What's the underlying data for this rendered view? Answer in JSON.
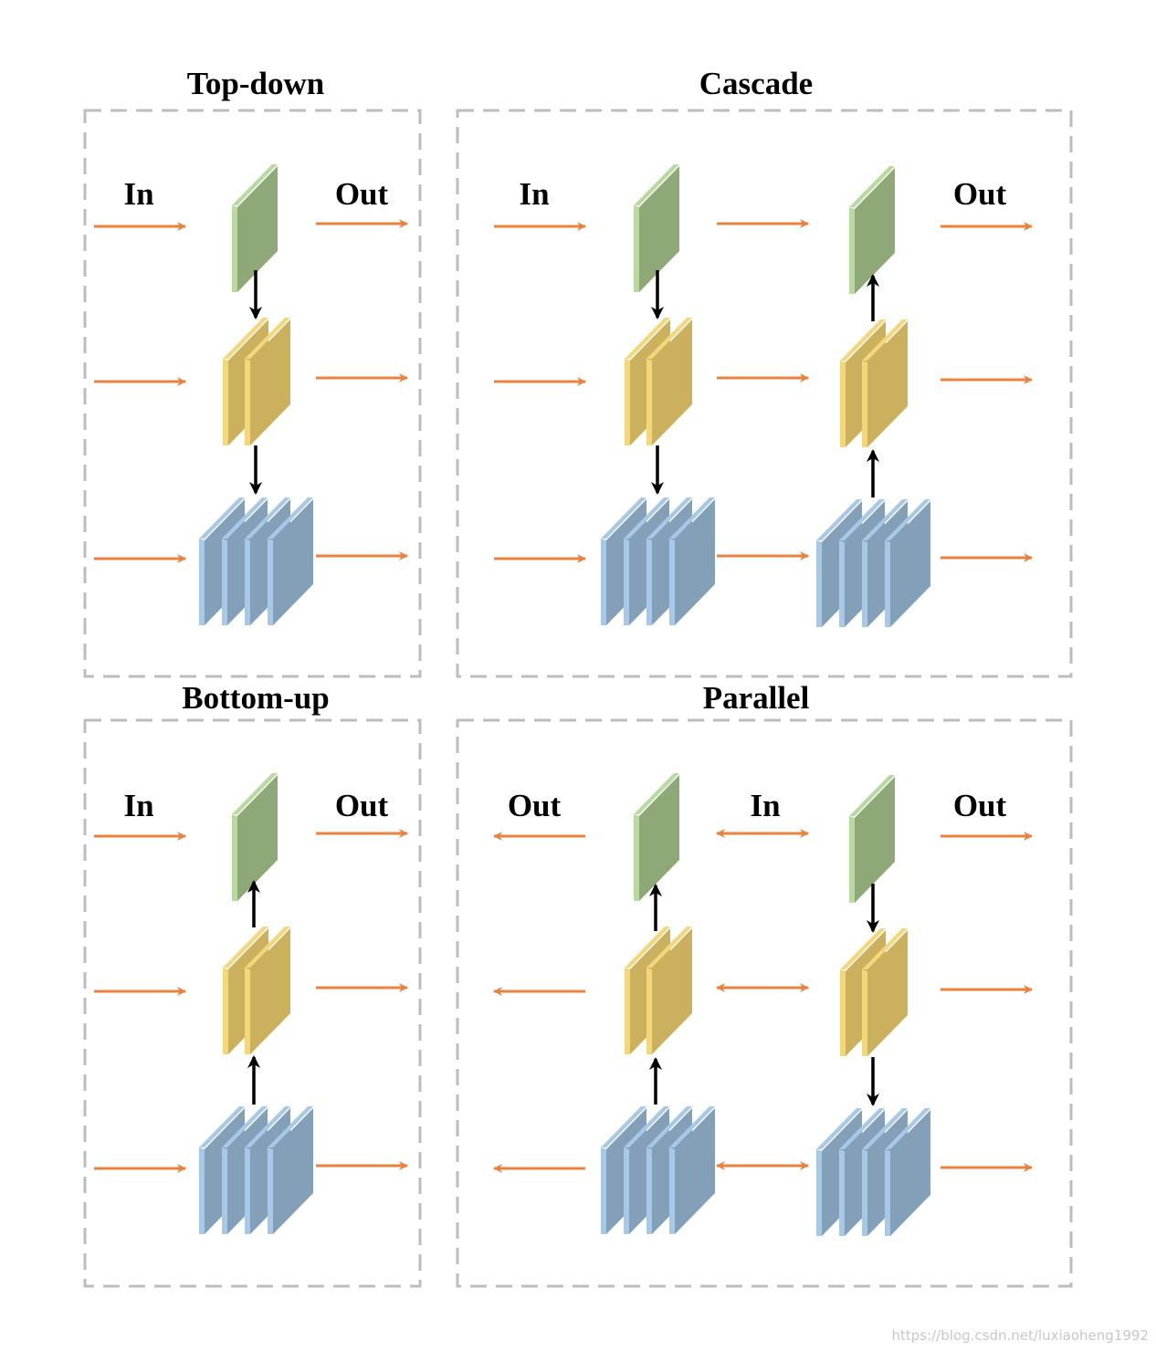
{
  "colors": {
    "flow_arrow": "#E8823E",
    "link_arrow": "#000000",
    "frame": "#BDBDBD",
    "green_face": "#8FA878",
    "green_edge": "#B8D9A0",
    "yellow_face": "#CBB05E",
    "yellow_edge": "#F4D77A",
    "blue_face": "#849FB8",
    "blue_edge": "#A8C8E8"
  },
  "panels": {
    "top_down": {
      "title": "Top-down",
      "in_label": "In",
      "out_label": "Out"
    },
    "cascade": {
      "title": "Cascade",
      "in_label": "In",
      "out_label": "Out"
    },
    "bottom_up": {
      "title": "Bottom-up",
      "in_label": "In",
      "out_label": "Out"
    },
    "parallel": {
      "title": "Parallel",
      "out_left_label": "Out",
      "in_label": "In",
      "out_right_label": "Out"
    }
  },
  "watermark": "https://blog.csdn.net/luxiaoheng1992"
}
